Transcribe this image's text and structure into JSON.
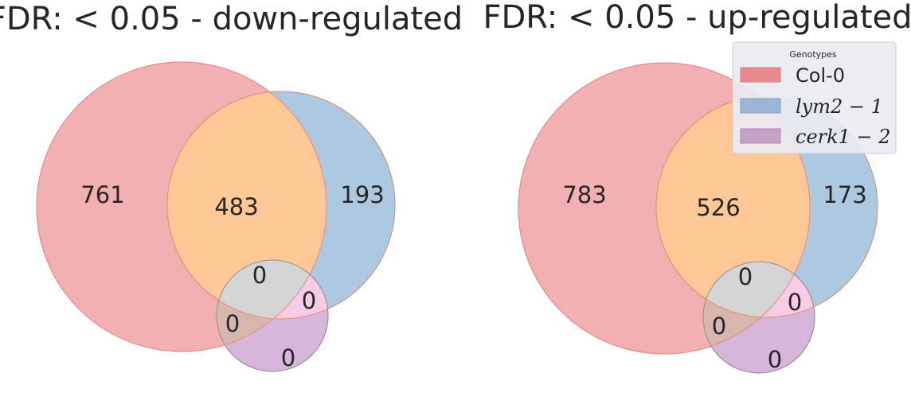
{
  "diagrams": [
    {
      "title": "FDR: < 0.05 - down-regulated",
      "counts": {
        "col0_only": "761",
        "col0_lym2": "483",
        "lym2_only": "193",
        "col0_lym2_cerk1": "0",
        "lym2_cerk1": "0",
        "col0_cerk1": "0",
        "cerk1_only": "0"
      }
    },
    {
      "title": "FDR: < 0.05 - up-regulated",
      "counts": {
        "col0_only": "783",
        "col0_lym2": "526",
        "lym2_only": "173",
        "col0_lym2_cerk1": "0",
        "lym2_cerk1": "0",
        "col0_cerk1": "0",
        "cerk1_only": "0"
      }
    }
  ],
  "legend": {
    "title": "Genotypes",
    "placement": "top-right",
    "items": [
      {
        "label": "Col-0",
        "color": "#e8898f"
      },
      {
        "label": "lym2 − 1",
        "color": "#8fb0d0"
      },
      {
        "label": "cerk1 − 2",
        "color": "#c39bc9"
      }
    ]
  },
  "colors": {
    "col0": "#e8797f",
    "lym2": "#5b95c2",
    "cerk1": "#a66fb5",
    "overlap_col0_lym2": "#ffc896",
    "overlap_all": "#d6d6d6",
    "overlap_lym2_cerk1": "#f9c8e6",
    "overlap_col0_cerk1": "#d4b0a8",
    "text": "#262626",
    "legend_bg": "#eaeaf2"
  }
}
